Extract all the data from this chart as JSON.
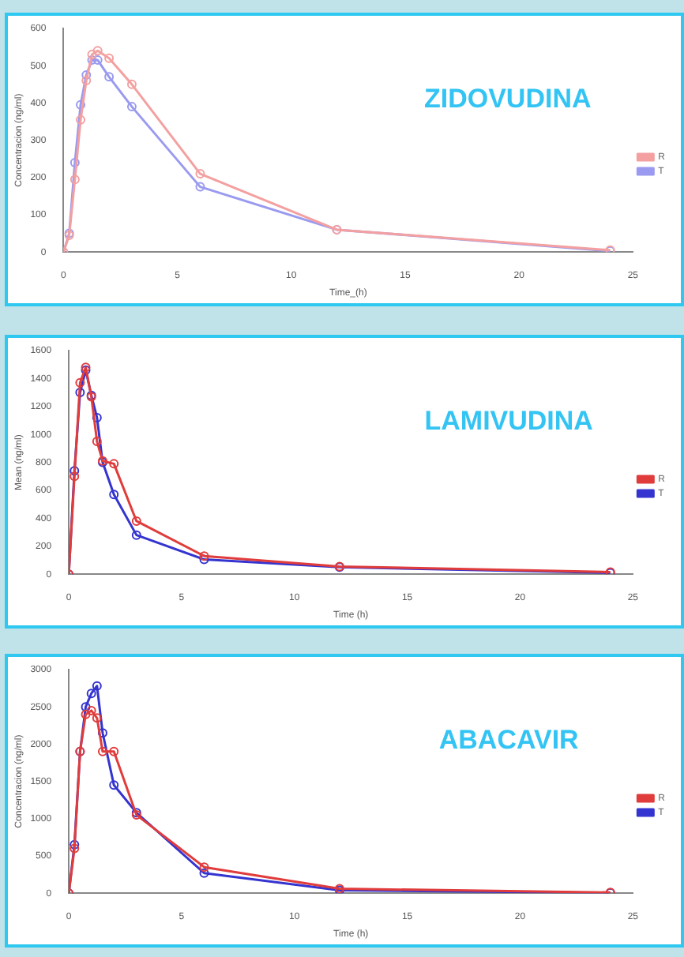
{
  "chart_data": [
    {
      "type": "line",
      "xlabel": "Time_(h)",
      "ylabel": "Concentracion (ng/ml)",
      "annotations": [
        "ZIDOVUDINA"
      ],
      "xlim": [
        0,
        25
      ],
      "xticks": [
        0,
        5,
        10,
        15,
        20,
        25
      ],
      "ylim": [
        0,
        600
      ],
      "yticks": [
        0,
        100,
        200,
        300,
        400,
        500,
        600
      ],
      "legend": "right",
      "marker": "circle",
      "grid": false,
      "x": [
        0,
        0.25,
        0.5,
        0.75,
        1,
        1.25,
        1.5,
        2,
        3,
        6,
        12,
        24
      ],
      "series": [
        {
          "name": "R",
          "color": "#f4a0a0",
          "values": [
            0,
            45,
            195,
            355,
            460,
            530,
            540,
            520,
            450,
            210,
            60,
            5
          ]
        },
        {
          "name": "T",
          "color": "#9a9af0",
          "values": [
            0,
            50,
            240,
            395,
            475,
            515,
            515,
            470,
            390,
            175,
            60,
            3
          ]
        }
      ]
    },
    {
      "type": "line",
      "xlabel": "Time (h)",
      "ylabel": "Mean (ng/ml)",
      "annotations": [
        "LAMIVUDINA"
      ],
      "xlim": [
        0,
        25
      ],
      "xticks": [
        0,
        5,
        10,
        15,
        20,
        25
      ],
      "ylim": [
        0,
        1600
      ],
      "yticks": [
        0,
        200,
        400,
        600,
        800,
        1000,
        1200,
        1400,
        1600
      ],
      "legend": "right",
      "marker": "circle",
      "grid": false,
      "x": [
        0,
        0.25,
        0.5,
        0.75,
        1,
        1.25,
        1.5,
        2,
        3,
        6,
        12,
        24
      ],
      "series": [
        {
          "name": "R",
          "color": "#e03c3c",
          "values": [
            0,
            700,
            1370,
            1480,
            1270,
            950,
            810,
            790,
            380,
            130,
            55,
            15
          ]
        },
        {
          "name": "T",
          "color": "#3434d0",
          "values": [
            0,
            740,
            1300,
            1460,
            1280,
            1120,
            800,
            570,
            280,
            105,
            50,
            10
          ]
        }
      ]
    },
    {
      "type": "line",
      "xlabel": "Time (h)",
      "ylabel": "Concentracion (ng/ml)",
      "annotations": [
        "ABACAVIR"
      ],
      "xlim": [
        0,
        25
      ],
      "xticks": [
        0,
        5,
        10,
        15,
        20,
        25
      ],
      "ylim": [
        0,
        3000
      ],
      "yticks": [
        0,
        500,
        1000,
        1500,
        2000,
        2500,
        3000
      ],
      "legend": "right",
      "marker": "circle",
      "grid": false,
      "x": [
        0,
        0.25,
        0.5,
        0.75,
        1,
        1.25,
        1.5,
        2,
        3,
        6,
        12,
        24
      ],
      "series": [
        {
          "name": "R",
          "color": "#e03c3c",
          "values": [
            0,
            600,
            1900,
            2400,
            2450,
            2350,
            1900,
            1900,
            1050,
            350,
            60,
            10
          ]
        },
        {
          "name": "T",
          "color": "#3434d0",
          "values": [
            0,
            650,
            1900,
            2500,
            2680,
            2780,
            2150,
            1450,
            1080,
            270,
            40,
            5
          ]
        }
      ]
    }
  ]
}
